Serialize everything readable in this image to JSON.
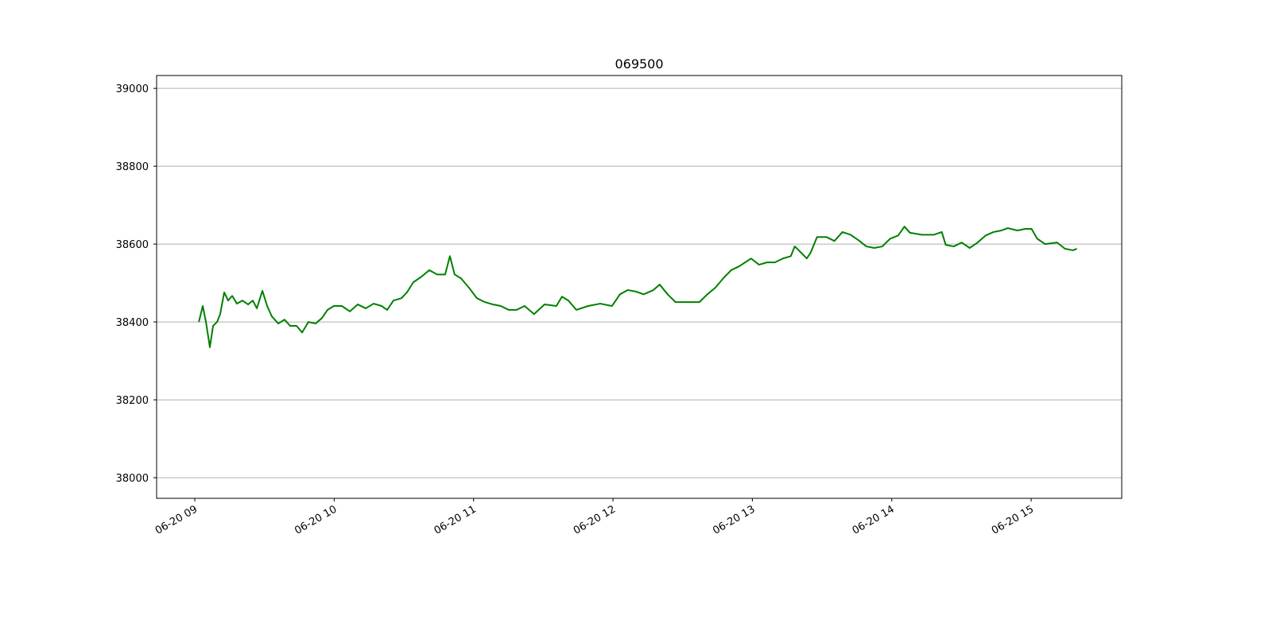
{
  "chart_data": {
    "type": "line",
    "title": "069500",
    "color": "#008000",
    "grid": "y",
    "x": [
      9.029,
      9.057,
      9.08,
      9.108,
      9.131,
      9.16,
      9.182,
      9.211,
      9.239,
      9.268,
      9.302,
      9.342,
      9.382,
      9.416,
      9.445,
      9.485,
      9.519,
      9.553,
      9.599,
      9.644,
      9.684,
      9.73,
      9.77,
      9.815,
      9.867,
      9.912,
      9.952,
      9.998,
      10.055,
      10.112,
      10.169,
      10.226,
      10.283,
      10.34,
      10.38,
      10.425,
      10.482,
      10.522,
      10.568,
      10.625,
      10.682,
      10.739,
      10.796,
      10.83,
      10.864,
      10.91,
      10.967,
      11.024,
      11.081,
      11.138,
      11.195,
      11.252,
      11.309,
      11.366,
      11.434,
      11.509,
      11.594,
      11.634,
      11.68,
      11.737,
      11.822,
      11.908,
      11.993,
      12.05,
      12.107,
      12.164,
      12.221,
      12.29,
      12.335,
      12.392,
      12.449,
      12.506,
      12.563,
      12.62,
      12.677,
      12.734,
      12.791,
      12.848,
      12.905,
      12.991,
      13.048,
      13.105,
      13.162,
      13.219,
      13.276,
      13.304,
      13.333,
      13.39,
      13.418,
      13.464,
      13.532,
      13.589,
      13.646,
      13.704,
      13.761,
      13.818,
      13.875,
      13.932,
      13.989,
      14.046,
      14.091,
      14.131,
      14.217,
      14.302,
      14.359,
      14.387,
      14.445,
      14.502,
      14.559,
      14.616,
      14.673,
      14.73,
      14.787,
      14.832,
      14.901,
      14.958,
      15.003,
      15.043,
      15.1,
      15.186,
      15.243,
      15.3,
      15.328
    ],
    "values": [
      38400,
      38441,
      38400,
      38335,
      38390,
      38400,
      38420,
      38476,
      38455,
      38467,
      38447,
      38455,
      38445,
      38455,
      38435,
      38480,
      38441,
      38414,
      38396,
      38406,
      38390,
      38390,
      38373,
      38400,
      38396,
      38410,
      38431,
      38441,
      38441,
      38427,
      38445,
      38435,
      38447,
      38441,
      38431,
      38455,
      38461,
      38476,
      38502,
      38516,
      38533,
      38522,
      38522,
      38569,
      38522,
      38512,
      38488,
      38461,
      38451,
      38445,
      38441,
      38431,
      38431,
      38441,
      38420,
      38445,
      38441,
      38465,
      38455,
      38431,
      38441,
      38447,
      38441,
      38471,
      38482,
      38478,
      38471,
      38482,
      38496,
      38471,
      38451,
      38451,
      38451,
      38451,
      38471,
      38488,
      38512,
      38533,
      38543,
      38563,
      38547,
      38553,
      38553,
      38563,
      38569,
      38594,
      38584,
      38563,
      38578,
      38618,
      38618,
      38608,
      38631,
      38624,
      38610,
      38594,
      38590,
      38594,
      38614,
      38622,
      38645,
      38629,
      38624,
      38624,
      38631,
      38598,
      38594,
      38604,
      38590,
      38604,
      38622,
      38631,
      38635,
      38641,
      38635,
      38639,
      38639,
      38614,
      38600,
      38604,
      38588,
      38584,
      38588
    ],
    "xlim": [
      8.726,
      15.65
    ],
    "xticks": [
      {
        "value": 9,
        "label": "06-20 09"
      },
      {
        "value": 10,
        "label": "06-20 10"
      },
      {
        "value": 11,
        "label": "06-20 11"
      },
      {
        "value": 12,
        "label": "06-20 12"
      },
      {
        "value": 13,
        "label": "06-20 13"
      },
      {
        "value": 14,
        "label": "06-20 14"
      },
      {
        "value": 15,
        "label": "06-20 15"
      }
    ],
    "ylim": [
      37947,
      39033
    ],
    "yticks": [
      38000,
      38200,
      38400,
      38600,
      38800,
      39000
    ]
  }
}
